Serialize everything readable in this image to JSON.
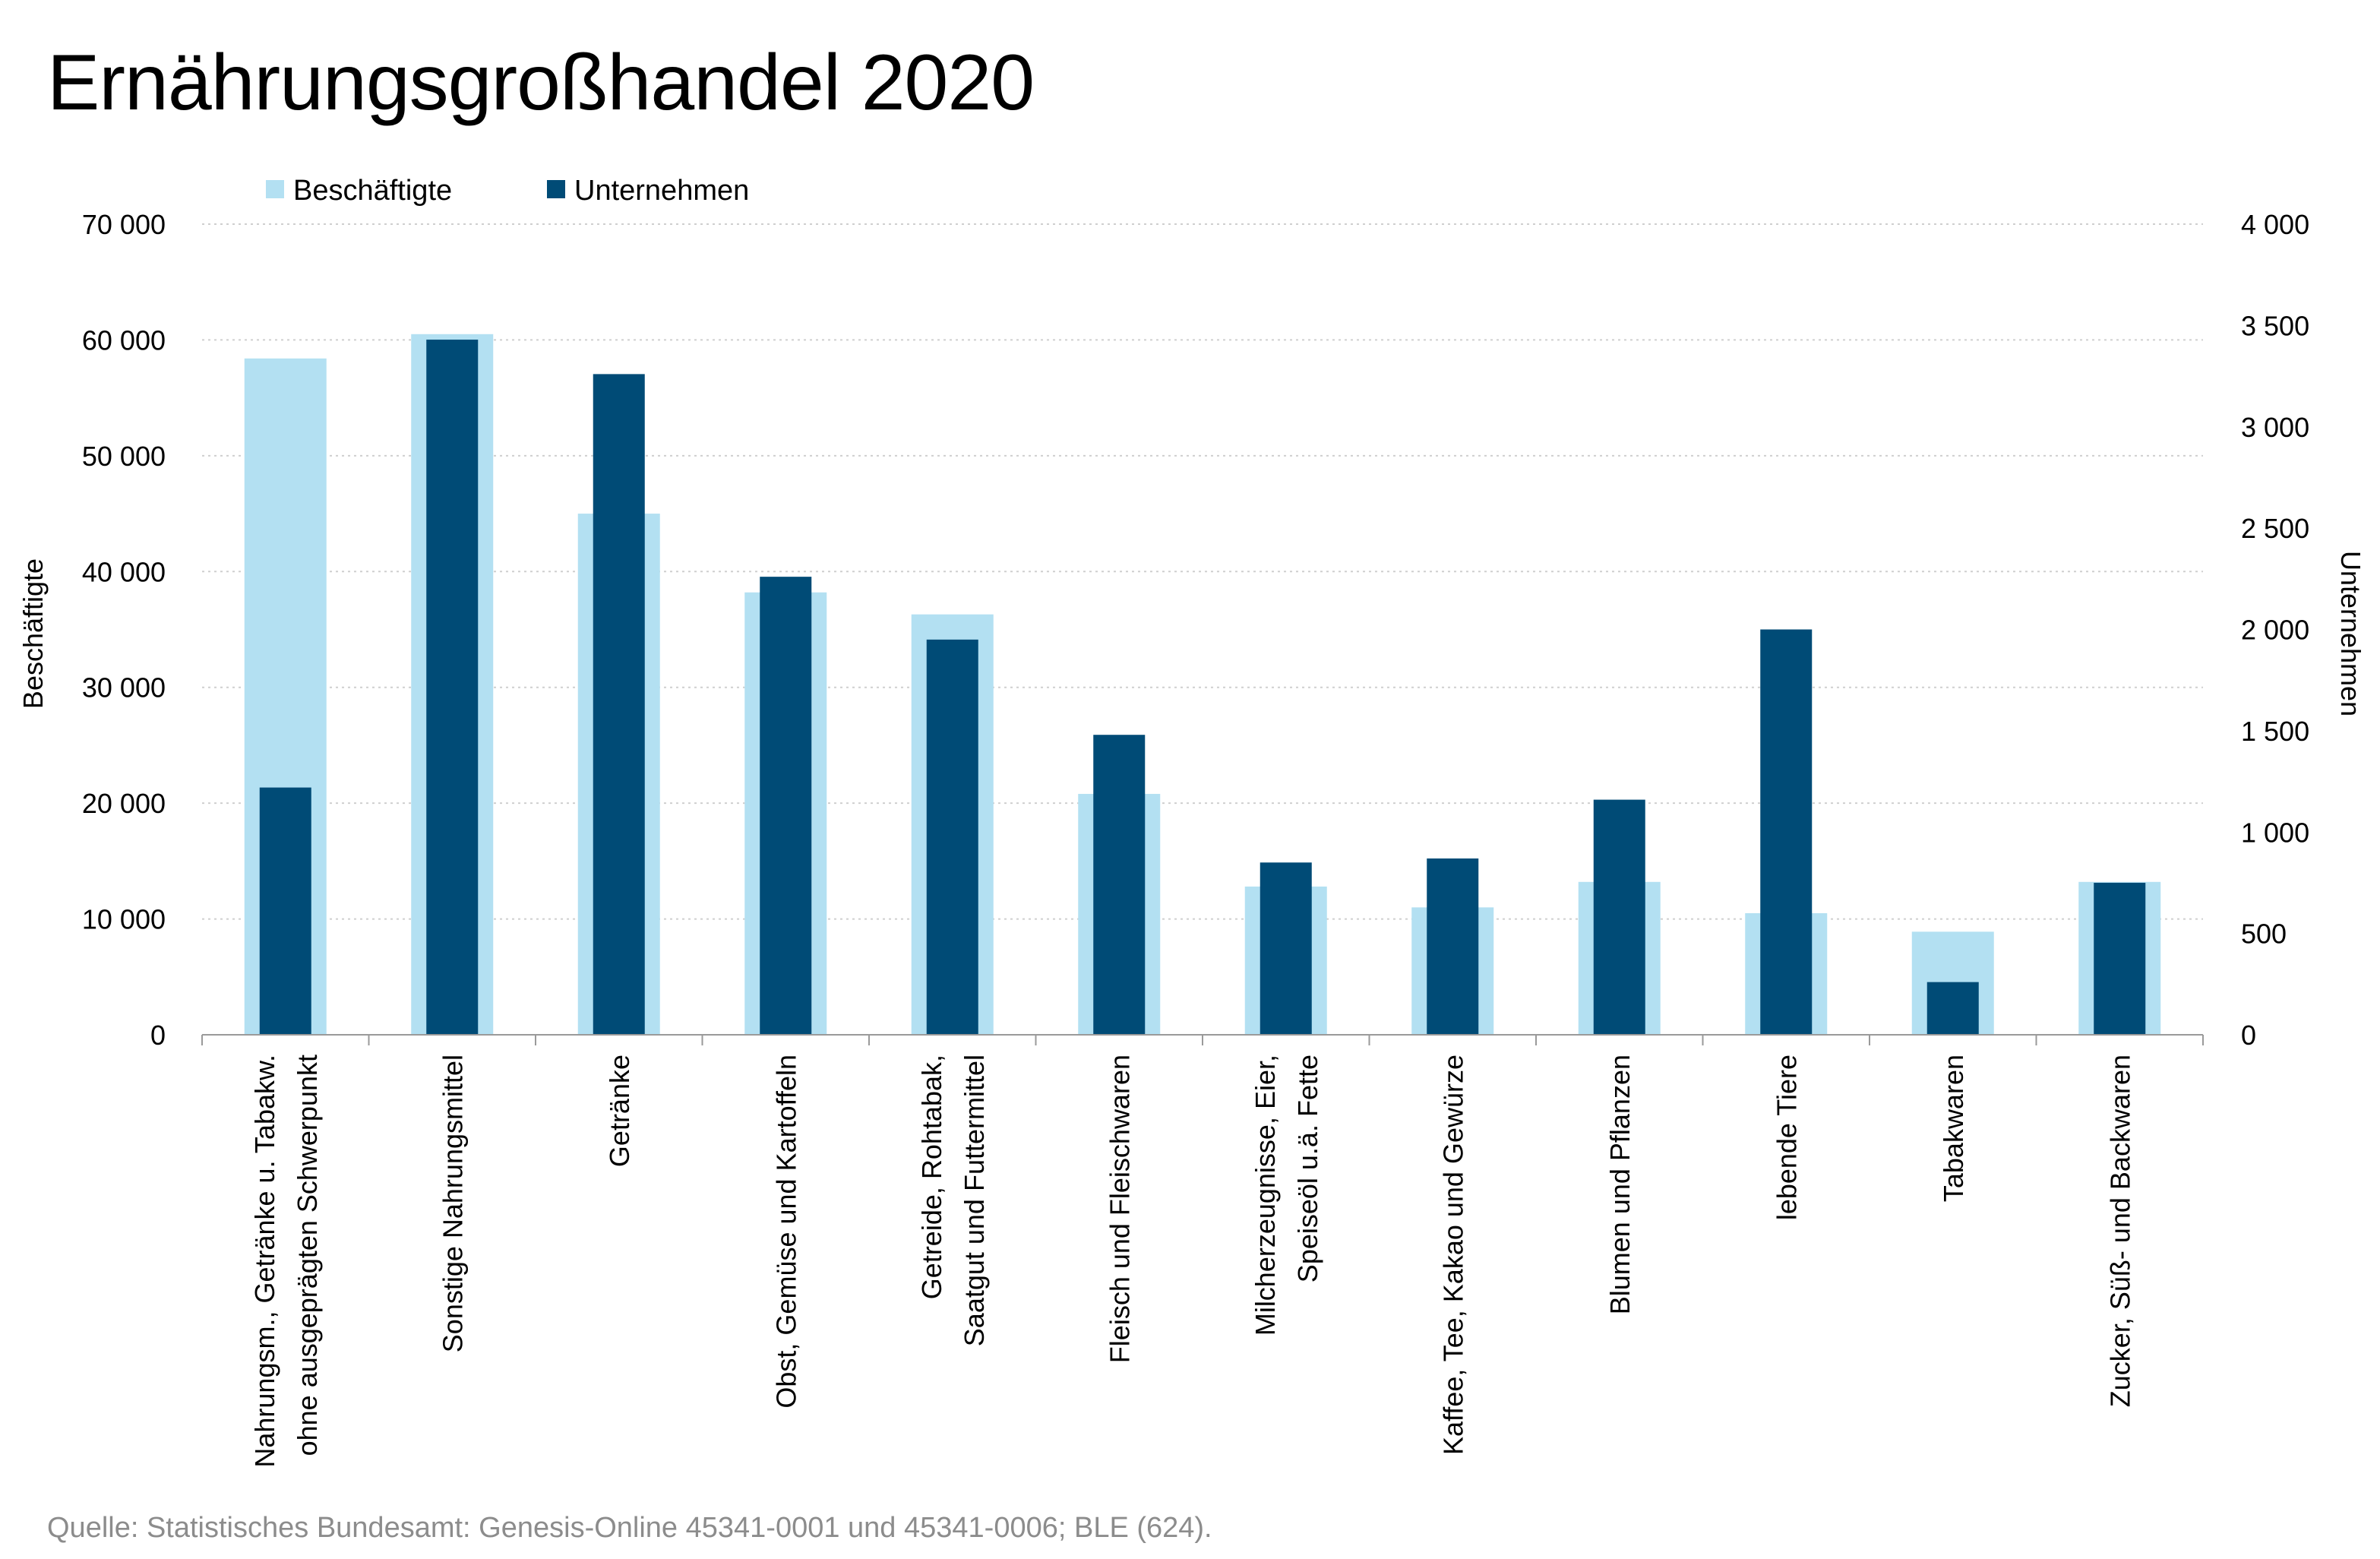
{
  "title": "Ernährungsgroßhandel 2020",
  "source": "Quelle: Statistisches Bundesamt: Genesis-Online 45341-0001 und 45341-0006; BLE (624).",
  "colors": {
    "beschaeftigte": "#b3e0f2",
    "unternehmen": "#004b76",
    "grid": "#cfcfcf",
    "axis": "#9a9a9a"
  },
  "chart_data": {
    "type": "bar",
    "categories": [
      [
        "Nahrungsm., Getränke u. Tabakw.",
        "ohne ausgeprägten Schwerpunkt"
      ],
      [
        "Sonstige Nahrungsmittel"
      ],
      [
        "Getränke"
      ],
      [
        "Obst, Gemüse und Kartoffeln"
      ],
      [
        "Getreide, Rohtabak,",
        "Saatgut und Futtermittel"
      ],
      [
        "Fleisch und Fleischwaren"
      ],
      [
        "Milcherzeugnisse, Eier,",
        "Speiseöl u.ä. Fette"
      ],
      [
        "Kaffee, Tee, Kakao und Gewürze"
      ],
      [
        "Blumen und Pflanzen"
      ],
      [
        "lebende Tiere"
      ],
      [
        "Tabakwaren"
      ],
      [
        "Zucker, Süß- und Backwaren"
      ]
    ],
    "series": [
      {
        "name": "Beschäftigte",
        "axis": "left",
        "values": [
          58400,
          60500,
          45000,
          38200,
          36300,
          20800,
          12800,
          11000,
          13200,
          10500,
          8900,
          13200
        ]
      },
      {
        "name": "Unternehmen",
        "axis": "right",
        "values": [
          1220,
          3430,
          3260,
          2260,
          1950,
          1480,
          850,
          870,
          1160,
          2000,
          260,
          750
        ]
      }
    ],
    "ylabel": "Beschäftigte",
    "y2label": "Unternehmen",
    "ylim": [
      0,
      70000
    ],
    "y2lim": [
      0,
      4000
    ],
    "yticks": [
      "0",
      "10 000",
      "20 000",
      "30 000",
      "40 000",
      "50 000",
      "60 000",
      "70 000"
    ],
    "y2ticks": [
      "0",
      "500",
      "1 000",
      "1 500",
      "2 000",
      "2 500",
      "3 000",
      "3 500",
      "4 000"
    ],
    "legend": "top-left",
    "grid": true
  }
}
